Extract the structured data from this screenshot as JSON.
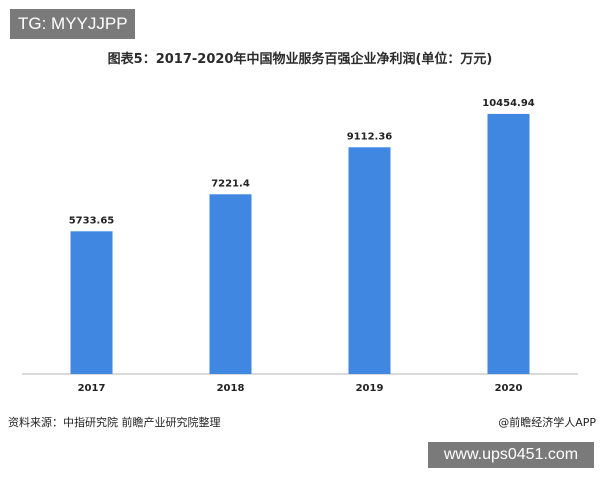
{
  "badge_text": "TG: MYYJJPP",
  "footer": {
    "source": "资料来源：中指研究院 前瞻产业研究院整理",
    "credit": "@前瞻经济学人APP",
    "url_badge": "www.ups0451.com"
  },
  "colors": {
    "bar": "#3f87e0",
    "axis": "#b5b5b5"
  },
  "chart_data": {
    "type": "bar",
    "title": "图表5：2017-2020年中国物业服务百强企业净利润(单位：万元)",
    "categories": [
      "2017",
      "2018",
      "2019",
      "2020"
    ],
    "values": [
      5733.65,
      7221.4,
      9112.36,
      10454.94
    ],
    "value_labels": [
      "5733.65",
      "7221.4",
      "9112.36",
      "10454.94"
    ],
    "xlabel": "",
    "ylabel": "",
    "ylim": [
      0,
      11500
    ],
    "grid": false,
    "legend": "none"
  }
}
